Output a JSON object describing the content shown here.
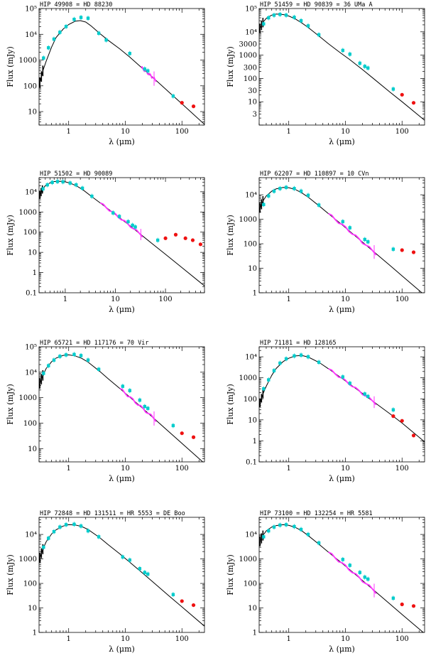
{
  "colors": {
    "model": "#000000",
    "photometry": "#00cccc",
    "spectrum": "#ff33ff",
    "far_ir": "#ee1111"
  },
  "chart_data": [
    {
      "type": "scatter",
      "title": "HIP 49908 = HD 88230",
      "xlabel": "λ (μm)",
      "ylabel": "Flux (mJy)",
      "xlim": [
        0.3,
        250
      ],
      "ylim": [
        3,
        100000
      ],
      "xscale": "log",
      "yscale": "log",
      "xticks": [
        1,
        10,
        100
      ],
      "xtick_labels": [
        "1",
        "10",
        "100"
      ],
      "yticks": [
        10,
        100,
        1000,
        10000,
        100000
      ],
      "ytick_labels": [
        "10",
        "100",
        "1000",
        "10⁴",
        "10⁵"
      ],
      "model": {
        "x": [
          0.3,
          0.35,
          0.4,
          0.5,
          0.6,
          0.8,
          1.0,
          1.3,
          1.6,
          2.0,
          2.5,
          3.5,
          5,
          8,
          12,
          20,
          30,
          60,
          100,
          250
        ],
        "y": [
          100,
          380,
          900,
          3200,
          7500,
          16000,
          24000,
          32000,
          34000,
          30000,
          21000,
          11000,
          5800,
          2700,
          1300,
          480,
          220,
          55,
          20,
          3.2
        ]
      },
      "points": {
        "x": [
          0.36,
          0.44,
          0.55,
          0.7,
          0.9,
          1.25,
          1.65,
          2.2,
          3.4,
          4.6,
          12,
          22,
          25,
          70
        ],
        "y": [
          1200,
          3000,
          6500,
          12000,
          20000,
          38000,
          45000,
          42000,
          11000,
          6000,
          1800,
          450,
          380,
          40
        ]
      },
      "far_ir": {
        "x": [
          100,
          160
        ],
        "y": [
          22,
          16
        ]
      },
      "spectrum": {
        "x0": 19,
        "x1": 35
      }
    },
    {
      "type": "scatter",
      "title": "HIP 51459 = HD 90839 = 36 UMa A",
      "xlabel": "λ (μm)",
      "ylabel": "Flux (mJy)",
      "xlim": [
        0.3,
        250
      ],
      "ylim": [
        1,
        100000
      ],
      "xscale": "log",
      "yscale": "log",
      "xticks": [
        1,
        10,
        100
      ],
      "xtick_labels": [
        "1",
        "10",
        "100"
      ],
      "yticks": [
        3,
        10,
        30,
        100,
        300,
        1000,
        3000,
        10000,
        100000
      ],
      "ytick_labels": [
        "3",
        "10",
        "30",
        "100",
        "300",
        "1000",
        "3000",
        "10⁴",
        "10⁵"
      ],
      "model": {
        "x": [
          0.3,
          0.35,
          0.4,
          0.5,
          0.6,
          0.8,
          1.0,
          1.3,
          1.7,
          2.2,
          3.5,
          5,
          8,
          12,
          20,
          30,
          60,
          100,
          250
        ],
        "y": [
          12000,
          25000,
          38000,
          52000,
          58000,
          55000,
          48000,
          36000,
          24000,
          15500,
          6300,
          3100,
          1300,
          640,
          240,
          108,
          27,
          10,
          1.6
        ]
      },
      "points": {
        "x": [
          0.36,
          0.44,
          0.55,
          0.7,
          0.9,
          1.25,
          1.65,
          2.2,
          3.4,
          9,
          12,
          18,
          22,
          25,
          70
        ],
        "y": [
          22000,
          40000,
          52000,
          56000,
          52000,
          42000,
          30000,
          18000,
          7500,
          1600,
          1100,
          450,
          330,
          280,
          35
        ]
      },
      "far_ir": {
        "x": [
          100,
          160
        ],
        "y": [
          20,
          9
        ]
      },
      "spectrum": null
    },
    {
      "type": "scatter",
      "title": "HIP 51502 = HD 90089",
      "xlabel": "λ (μm)",
      "ylabel": "Flux (mJy)",
      "xlim": [
        0.3,
        600
      ],
      "ylim": [
        0.1,
        50000
      ],
      "xscale": "log",
      "yscale": "log",
      "xticks": [
        1,
        10,
        100
      ],
      "xtick_labels": [
        "1",
        "10",
        "100"
      ],
      "yticks": [
        0.1,
        1,
        10,
        100,
        1000,
        10000
      ],
      "ytick_labels": [
        "0.1",
        "1",
        "10",
        "100",
        "1000",
        "10⁴"
      ],
      "model": {
        "x": [
          0.3,
          0.35,
          0.4,
          0.5,
          0.6,
          0.8,
          1.0,
          1.3,
          1.7,
          2.2,
          3.5,
          5,
          8,
          12,
          20,
          30,
          60,
          100,
          200,
          600
        ],
        "y": [
          6000,
          13000,
          20000,
          28000,
          32000,
          33000,
          31000,
          26000,
          19000,
          13000,
          5400,
          2800,
          1150,
          530,
          200,
          88,
          22,
          8,
          2,
          0.22
        ]
      },
      "points": {
        "x": [
          0.36,
          0.44,
          0.55,
          0.7,
          0.9,
          1.25,
          1.65,
          2.2,
          3.4,
          9,
          12,
          18,
          22,
          25,
          70
        ],
        "y": [
          14000,
          22000,
          29000,
          32000,
          31000,
          27000,
          22000,
          15000,
          6000,
          900,
          600,
          330,
          220,
          180,
          40
        ]
      },
      "far_ir": {
        "x": [
          100,
          160,
          250,
          350,
          500
        ],
        "y": [
          50,
          75,
          50,
          40,
          25
        ]
      },
      "spectrum": {
        "x0": 5,
        "x1": 35
      }
    },
    {
      "type": "scatter",
      "title": "HIP 62207 = HD 110897 = 10 CVn",
      "xlabel": "λ (μm)",
      "ylabel": "Flux (mJy)",
      "xlim": [
        0.3,
        250
      ],
      "ylim": [
        1,
        50000
      ],
      "xscale": "log",
      "yscale": "log",
      "xticks": [
        1,
        10,
        100
      ],
      "xtick_labels": [
        "1",
        "10",
        "100"
      ],
      "yticks": [
        1,
        10,
        100,
        1000,
        10000
      ],
      "ytick_labels": [
        "1",
        "10",
        "100",
        "1000",
        "10⁴"
      ],
      "model": {
        "x": [
          0.3,
          0.35,
          0.4,
          0.5,
          0.6,
          0.8,
          1.0,
          1.3,
          1.7,
          2.2,
          3.5,
          5,
          8,
          12,
          20,
          30,
          60,
          100,
          250
        ],
        "y": [
          2500,
          5500,
          9000,
          14000,
          17500,
          20000,
          19500,
          16500,
          12000,
          8000,
          3400,
          1700,
          700,
          320,
          118,
          53,
          13.5,
          4.9,
          0.8
        ]
      },
      "points": {
        "x": [
          0.36,
          0.44,
          0.55,
          0.7,
          0.9,
          1.25,
          1.65,
          2.2,
          3.4,
          9,
          12,
          22,
          25,
          70
        ],
        "y": [
          4000,
          9000,
          14000,
          18000,
          20000,
          18000,
          14000,
          9500,
          3800,
          800,
          450,
          150,
          120,
          60
        ]
      },
      "far_ir": {
        "x": [
          100,
          160
        ],
        "y": [
          55,
          45
        ]
      },
      "spectrum": {
        "x0": 5,
        "x1": 35
      }
    },
    {
      "type": "scatter",
      "title": "HIP 65721 = HD 117176 = 70 Vir",
      "xlabel": "λ (μm)",
      "ylabel": "Flux (mJy)",
      "xlim": [
        0.3,
        250
      ],
      "ylim": [
        3,
        100000
      ],
      "xscale": "log",
      "yscale": "log",
      "xticks": [
        1,
        10,
        100
      ],
      "xtick_labels": [
        "1",
        "10",
        "100"
      ],
      "yticks": [
        10,
        100,
        1000,
        10000,
        100000
      ],
      "ytick_labels": [
        "10",
        "100",
        "1000",
        "10⁴",
        "10⁵"
      ],
      "model": {
        "x": [
          0.3,
          0.35,
          0.4,
          0.5,
          0.6,
          0.8,
          1.0,
          1.3,
          1.7,
          2.2,
          3.5,
          5,
          8,
          12,
          20,
          30,
          60,
          100,
          250
        ],
        "y": [
          3000,
          7500,
          14000,
          26000,
          36000,
          46000,
          48000,
          44000,
          35000,
          25000,
          11000,
          5500,
          2300,
          1050,
          390,
          175,
          44,
          16,
          2.6
        ]
      },
      "points": {
        "x": [
          0.36,
          0.44,
          0.55,
          0.7,
          0.9,
          1.25,
          1.65,
          2.2,
          3.4,
          9,
          12,
          18,
          22,
          25,
          70
        ],
        "y": [
          9000,
          18000,
          30000,
          42000,
          48000,
          50000,
          45000,
          30000,
          13000,
          2800,
          1900,
          800,
          450,
          380,
          80
        ]
      },
      "far_ir": {
        "x": [
          100,
          160
        ],
        "y": [
          40,
          28
        ]
      },
      "spectrum": {
        "x0": 8,
        "x1": 35
      }
    },
    {
      "type": "scatter",
      "title": "HIP 71181 = HD 128165",
      "xlabel": "λ (μm)",
      "ylabel": "Flux (mJy)",
      "xlim": [
        0.3,
        250
      ],
      "ylim": [
        0.1,
        30000
      ],
      "xscale": "log",
      "yscale": "log",
      "xticks": [
        1,
        10,
        100
      ],
      "xtick_labels": [
        "1",
        "10",
        "100"
      ],
      "yticks": [
        0.1,
        1,
        10,
        100,
        1000,
        10000
      ],
      "ytick_labels": [
        "0.1",
        "1",
        "10",
        "100",
        "1000",
        "10⁴"
      ],
      "model": {
        "x": [
          0.3,
          0.35,
          0.4,
          0.5,
          0.6,
          0.8,
          1.0,
          1.3,
          1.7,
          2.2,
          3.5,
          5,
          8,
          12,
          20,
          30,
          60,
          100,
          250
        ],
        "y": [
          50,
          170,
          400,
          1300,
          2800,
          6000,
          8500,
          11000,
          11500,
          9800,
          5200,
          2700,
          1100,
          500,
          180,
          80,
          20,
          7,
          0.9
        ]
      },
      "points": {
        "x": [
          0.36,
          0.44,
          0.55,
          0.7,
          0.9,
          1.25,
          1.65,
          2.2,
          3.4,
          9,
          12,
          22,
          25,
          70
        ],
        "y": [
          300,
          800,
          2200,
          5000,
          8000,
          11000,
          12000,
          10000,
          5500,
          1100,
          550,
          170,
          130,
          30
        ]
      },
      "far_ir": {
        "x": [
          70,
          100,
          160
        ],
        "y": [
          15,
          9,
          1.8
        ]
      },
      "spectrum": {
        "x0": 5,
        "x1": 35
      }
    },
    {
      "type": "scatter",
      "title": "HIP 72848 = HD 131511 = HR 5553 = DE Boo",
      "xlabel": "λ (μm)",
      "ylabel": "Flux (mJy)",
      "xlim": [
        0.3,
        250
      ],
      "ylim": [
        1,
        50000
      ],
      "xscale": "log",
      "yscale": "log",
      "xticks": [
        1,
        10,
        100
      ],
      "xtick_labels": [
        "1",
        "10",
        "100"
      ],
      "yticks": [
        1,
        10,
        100,
        1000,
        10000
      ],
      "ytick_labels": [
        "1",
        "10",
        "100",
        "1000",
        "10⁴"
      ],
      "model": {
        "x": [
          0.3,
          0.35,
          0.4,
          0.5,
          0.6,
          0.8,
          1.0,
          1.3,
          1.7,
          2.2,
          3.5,
          5,
          8,
          12,
          20,
          30,
          60,
          100,
          250
        ],
        "y": [
          900,
          2500,
          5000,
          10500,
          15500,
          22000,
          25000,
          24500,
          21000,
          16000,
          7500,
          3800,
          1600,
          730,
          270,
          120,
          30,
          11,
          1.8
        ]
      },
      "points": {
        "x": [
          0.36,
          0.44,
          0.55,
          0.7,
          0.9,
          1.25,
          1.65,
          2.2,
          3.4,
          9,
          12,
          18,
          22,
          25,
          70
        ],
        "y": [
          3000,
          7000,
          13000,
          20000,
          25000,
          26000,
          22000,
          14000,
          8000,
          1200,
          900,
          400,
          280,
          240,
          35
        ]
      },
      "far_ir": {
        "x": [
          100,
          160
        ],
        "y": [
          19,
          13
        ]
      },
      "spectrum": null
    },
    {
      "type": "scatter",
      "title": "HIP 73100 = HD 132254 = HR 5581",
      "xlabel": "λ (μm)",
      "ylabel": "Flux (mJy)",
      "xlim": [
        0.3,
        250
      ],
      "ylim": [
        1,
        50000
      ],
      "xscale": "log",
      "yscale": "log",
      "xticks": [
        1,
        10,
        100
      ],
      "xtick_labels": [
        "1",
        "10",
        "100"
      ],
      "yticks": [
        1,
        10,
        100,
        1000,
        10000
      ],
      "ytick_labels": [
        "1",
        "10",
        "100",
        "1000",
        "10⁴"
      ],
      "model": {
        "x": [
          0.3,
          0.35,
          0.4,
          0.5,
          0.6,
          0.8,
          1.0,
          1.3,
          1.7,
          2.2,
          3.5,
          5,
          8,
          12,
          20,
          30,
          60,
          100,
          250
        ],
        "y": [
          4500,
          9000,
          14000,
          20000,
          23000,
          25000,
          23500,
          19500,
          14000,
          9000,
          3800,
          1900,
          780,
          360,
          132,
          59,
          15,
          5.4,
          0.9
        ]
      },
      "points": {
        "x": [
          0.36,
          0.44,
          0.55,
          0.7,
          0.9,
          1.25,
          1.65,
          2.2,
          3.4,
          9,
          12,
          18,
          22,
          25,
          70
        ],
        "y": [
          8000,
          14000,
          20000,
          24000,
          25000,
          21000,
          16000,
          10000,
          4500,
          950,
          550,
          280,
          180,
          150,
          25
        ]
      },
      "far_ir": {
        "x": [
          100,
          160
        ],
        "y": [
          14,
          12
        ]
      },
      "spectrum": {
        "x0": 5,
        "x1": 35
      }
    }
  ]
}
